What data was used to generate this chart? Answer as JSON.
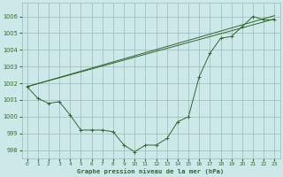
{
  "xlabel": "Graphe pression niveau de la mer (hPa)",
  "background_color": "#cce8e8",
  "grid_color": "#99bbbb",
  "line_color": "#336633",
  "xlim": [
    -0.5,
    23.5
  ],
  "ylim": [
    997.5,
    1006.8
  ],
  "yticks": [
    998,
    999,
    1000,
    1001,
    1002,
    1003,
    1004,
    1005,
    1006
  ],
  "xticks": [
    0,
    1,
    2,
    3,
    4,
    5,
    6,
    7,
    8,
    9,
    10,
    11,
    12,
    13,
    14,
    15,
    16,
    17,
    18,
    19,
    20,
    21,
    22,
    23
  ],
  "curve": {
    "x": [
      0,
      1,
      2,
      3,
      4,
      5,
      6,
      7,
      8,
      9,
      10,
      11,
      12,
      13,
      14,
      15,
      16,
      17,
      18,
      19,
      20,
      21,
      22,
      23
    ],
    "y": [
      1001.8,
      1001.1,
      1000.8,
      1000.9,
      1000.1,
      999.2,
      999.2,
      999.2,
      999.1,
      998.3,
      997.9,
      998.3,
      998.3,
      998.7,
      999.7,
      1000.0,
      1002.4,
      1003.8,
      1004.7,
      1004.8,
      1005.4,
      1006.0,
      1005.8,
      1005.8
    ]
  },
  "line2": {
    "x": [
      0,
      23
    ],
    "y": [
      1001.8,
      1005.85
    ]
  },
  "line3": {
    "x": [
      0,
      23
    ],
    "y": [
      1001.8,
      1006.05
    ]
  }
}
